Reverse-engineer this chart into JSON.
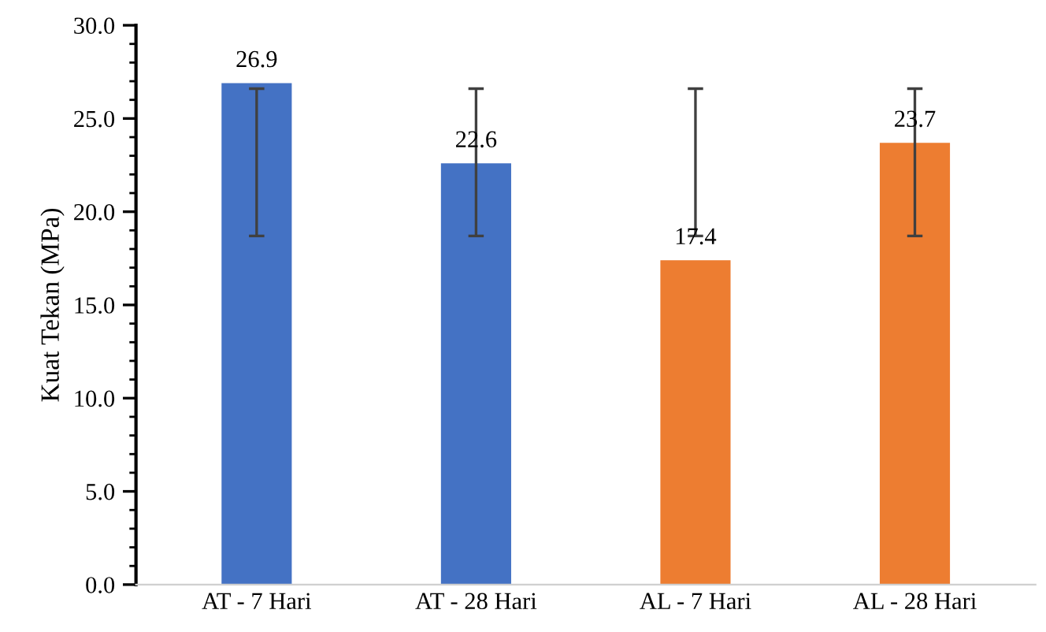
{
  "chart_data": {
    "type": "bar",
    "ylabel": "Kuat Tekan (MPa)",
    "categories": [
      "AT - 7 Hari",
      "AT - 28 Hari",
      "AL - 7 Hari",
      "AL - 28 Hari"
    ],
    "values": [
      26.9,
      22.6,
      17.4,
      23.7
    ],
    "colors": [
      "#4472c4",
      "#4472c4",
      "#ed7d31",
      "#ed7d31"
    ],
    "errors": [
      [
        18.7,
        26.6
      ],
      [
        18.7,
        26.6
      ],
      [
        18.7,
        26.6
      ],
      [
        18.7,
        26.6
      ]
    ],
    "value_labels": [
      "26.9",
      "22.6",
      "17.4",
      "23.7"
    ],
    "ylim": [
      0,
      30
    ],
    "yticks": [
      {
        "value": 0,
        "label": "0.0"
      },
      {
        "value": 5,
        "label": "5.0"
      },
      {
        "value": 10,
        "label": "10.0"
      },
      {
        "value": 15,
        "label": "15.0"
      },
      {
        "value": 20,
        "label": "20.0"
      },
      {
        "value": 25,
        "label": "25.0"
      },
      {
        "value": 30,
        "label": "30.0"
      }
    ],
    "grid": false,
    "legend": false
  }
}
